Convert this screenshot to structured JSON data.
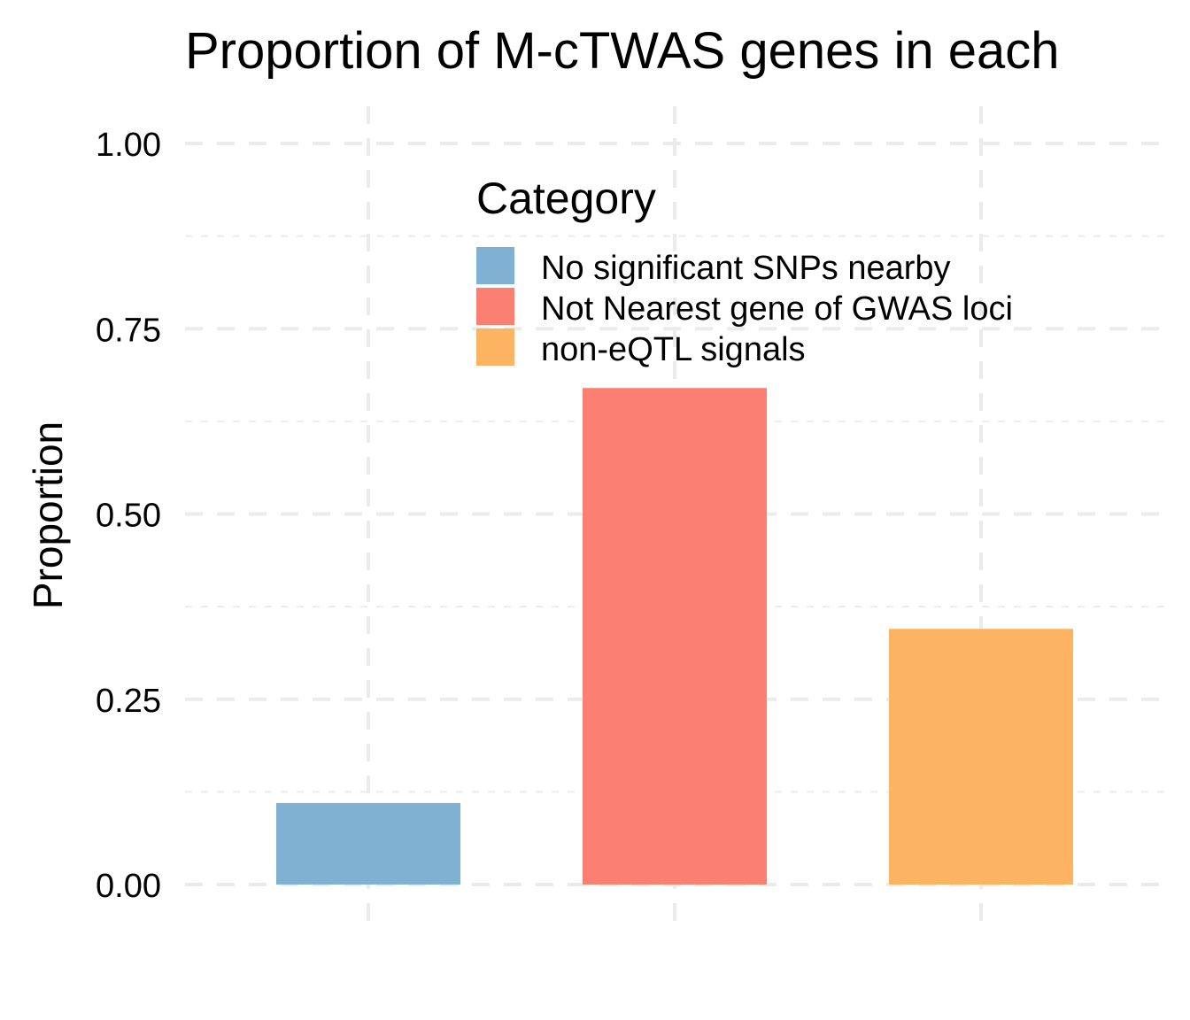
{
  "chart_data": {
    "type": "bar",
    "title": "Proportion of M-cTWAS genes in each",
    "xlabel": "",
    "ylabel": "Proportion",
    "ylim": [
      0,
      1
    ],
    "yticks": [
      "0.00",
      "0.25",
      "0.50",
      "0.75",
      "1.00"
    ],
    "ytick_values": [
      0,
      0.25,
      0.5,
      0.75,
      1.0
    ],
    "grid": true,
    "legend_title": "Category",
    "legend_position": "top-center",
    "categories": [
      "No significant SNPs nearby",
      "Not Nearest gene of GWAS loci",
      "non-eQTL signals"
    ],
    "values": [
      0.11,
      0.67,
      0.345
    ],
    "colors": [
      "#80B1D3",
      "#FB8072",
      "#FDB462"
    ]
  }
}
